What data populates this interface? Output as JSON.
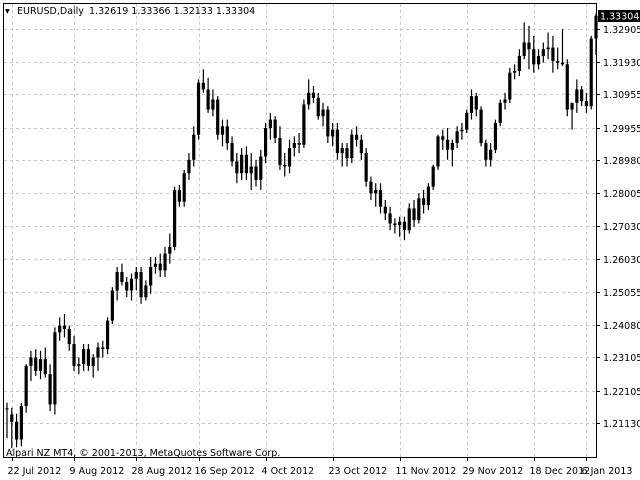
{
  "header": {
    "symbol": "EURUSD,Daily",
    "ohlc": "1.32619 1.33366 1.32133 1.33304"
  },
  "footer": {
    "copyright": "Alpari NZ MT4, © 2001-2013, MetaQuotes Software Corp."
  },
  "colors": {
    "background": "#ffffff",
    "grid": "#c8c8c8",
    "bar": "#000000",
    "frame": "#000000",
    "price_box": "#000000"
  },
  "chart_data": {
    "type": "candlestick",
    "ylim": [
      1.2013,
      1.3365
    ],
    "y_ticks": [
      "1.32905",
      "1.31930",
      "1.30955",
      "1.29955",
      "1.28980",
      "1.28005",
      "1.27030",
      "1.26030",
      "1.25055",
      "1.24080",
      "1.23105",
      "1.22105",
      "1.21130"
    ],
    "x_ticks": [
      "22 Jul 2012",
      "9 Aug 2012",
      "28 Aug 2012",
      "16 Sep 2012",
      "4 Oct 2012",
      "23 Oct 2012",
      "11 Nov 2012",
      "29 Nov 2012",
      "18 Dec 2012",
      "6 Jan 2013"
    ],
    "current_price": "1.33304",
    "series": [
      {
        "x": "2012-07-20",
        "open": 1.2155,
        "high": 1.2175,
        "low": 1.2069,
        "close": 1.2158
      },
      {
        "x": "2012-07-23",
        "open": 1.214,
        "high": 1.216,
        "low": 1.204,
        "close": 1.2118
      },
      {
        "x": "2012-07-24",
        "open": 1.2118,
        "high": 1.2142,
        "low": 1.2042,
        "close": 1.2065
      },
      {
        "x": "2012-07-25",
        "open": 1.2065,
        "high": 1.2175,
        "low": 1.2045,
        "close": 1.2165
      },
      {
        "x": "2012-07-26",
        "open": 1.2165,
        "high": 1.229,
        "low": 1.2145,
        "close": 1.2285
      },
      {
        "x": "2012-07-27",
        "open": 1.2285,
        "high": 1.233,
        "low": 1.224,
        "close": 1.231
      },
      {
        "x": "2012-07-30",
        "open": 1.231,
        "high": 1.2335,
        "low": 1.2255,
        "close": 1.227
      },
      {
        "x": "2012-07-31",
        "open": 1.227,
        "high": 1.233,
        "low": 1.2245,
        "close": 1.2305
      },
      {
        "x": "2012-08-01",
        "open": 1.2305,
        "high": 1.234,
        "low": 1.225,
        "close": 1.226
      },
      {
        "x": "2012-08-02",
        "open": 1.226,
        "high": 1.229,
        "low": 1.215,
        "close": 1.217
      },
      {
        "x": "2012-08-03",
        "open": 1.217,
        "high": 1.24,
        "low": 1.214,
        "close": 1.2385
      },
      {
        "x": "2012-08-06",
        "open": 1.2385,
        "high": 1.243,
        "low": 1.236,
        "close": 1.2405
      },
      {
        "x": "2012-08-07",
        "open": 1.2405,
        "high": 1.244,
        "low": 1.237,
        "close": 1.2395
      },
      {
        "x": "2012-08-08",
        "open": 1.2395,
        "high": 1.2405,
        "low": 1.233,
        "close": 1.235
      },
      {
        "x": "2012-08-09",
        "open": 1.235,
        "high": 1.2375,
        "low": 1.227,
        "close": 1.2285
      },
      {
        "x": "2012-08-10",
        "open": 1.2285,
        "high": 1.231,
        "low": 1.226,
        "close": 1.229
      },
      {
        "x": "2012-08-13",
        "open": 1.229,
        "high": 1.235,
        "low": 1.227,
        "close": 1.2335
      },
      {
        "x": "2012-08-14",
        "open": 1.2335,
        "high": 1.235,
        "low": 1.227,
        "close": 1.2285
      },
      {
        "x": "2012-08-15",
        "open": 1.2285,
        "high": 1.232,
        "low": 1.225,
        "close": 1.231
      },
      {
        "x": "2012-08-16",
        "open": 1.231,
        "high": 1.2355,
        "low": 1.227,
        "close": 1.234
      },
      {
        "x": "2012-08-17",
        "open": 1.234,
        "high": 1.236,
        "low": 1.231,
        "close": 1.2335
      },
      {
        "x": "2012-08-20",
        "open": 1.2335,
        "high": 1.243,
        "low": 1.232,
        "close": 1.242
      },
      {
        "x": "2012-08-21",
        "open": 1.242,
        "high": 1.252,
        "low": 1.241,
        "close": 1.251
      },
      {
        "x": "2012-08-22",
        "open": 1.251,
        "high": 1.258,
        "low": 1.248,
        "close": 1.2565
      },
      {
        "x": "2012-08-23",
        "open": 1.2565,
        "high": 1.259,
        "low": 1.2525,
        "close": 1.2535
      },
      {
        "x": "2012-08-24",
        "open": 1.2535,
        "high": 1.255,
        "low": 1.249,
        "close": 1.251
      },
      {
        "x": "2012-08-27",
        "open": 1.251,
        "high": 1.256,
        "low": 1.248,
        "close": 1.2545
      },
      {
        "x": "2012-08-28",
        "open": 1.2545,
        "high": 1.258,
        "low": 1.251,
        "close": 1.2565
      },
      {
        "x": "2012-08-29",
        "open": 1.2565,
        "high": 1.258,
        "low": 1.247,
        "close": 1.249
      },
      {
        "x": "2012-08-30",
        "open": 1.249,
        "high": 1.254,
        "low": 1.248,
        "close": 1.2525
      },
      {
        "x": "2012-08-31",
        "open": 1.2525,
        "high": 1.261,
        "low": 1.25,
        "close": 1.258
      },
      {
        "x": "2012-09-03",
        "open": 1.258,
        "high": 1.261,
        "low": 1.256,
        "close": 1.259
      },
      {
        "x": "2012-09-04",
        "open": 1.259,
        "high": 1.262,
        "low": 1.255,
        "close": 1.257
      },
      {
        "x": "2012-09-05",
        "open": 1.257,
        "high": 1.264,
        "low": 1.255,
        "close": 1.262
      },
      {
        "x": "2012-09-06",
        "open": 1.262,
        "high": 1.268,
        "low": 1.259,
        "close": 1.264
      },
      {
        "x": "2012-09-07",
        "open": 1.264,
        "high": 1.282,
        "low": 1.263,
        "close": 1.281
      },
      {
        "x": "2012-09-10",
        "open": 1.281,
        "high": 1.2825,
        "low": 1.276,
        "close": 1.2775
      },
      {
        "x": "2012-09-11",
        "open": 1.2775,
        "high": 1.287,
        "low": 1.276,
        "close": 1.286
      },
      {
        "x": "2012-09-12",
        "open": 1.286,
        "high": 1.292,
        "low": 1.284,
        "close": 1.29
      },
      {
        "x": "2012-09-13",
        "open": 1.29,
        "high": 1.3,
        "low": 1.288,
        "close": 1.2975
      },
      {
        "x": "2012-09-14",
        "open": 1.2975,
        "high": 1.314,
        "low": 1.296,
        "close": 1.313
      },
      {
        "x": "2012-09-17",
        "open": 1.313,
        "high": 1.317,
        "low": 1.31,
        "close": 1.311
      },
      {
        "x": "2012-09-18",
        "open": 1.311,
        "high": 1.3145,
        "low": 1.304,
        "close": 1.305
      },
      {
        "x": "2012-09-19",
        "open": 1.305,
        "high": 1.311,
        "low": 1.303,
        "close": 1.308
      },
      {
        "x": "2012-09-20",
        "open": 1.308,
        "high": 1.309,
        "low": 1.296,
        "close": 1.2975
      },
      {
        "x": "2012-09-21",
        "open": 1.2975,
        "high": 1.302,
        "low": 1.294,
        "close": 1.3
      },
      {
        "x": "2012-09-24",
        "open": 1.3,
        "high": 1.302,
        "low": 1.293,
        "close": 1.295
      },
      {
        "x": "2012-09-25",
        "open": 1.295,
        "high": 1.297,
        "low": 1.288,
        "close": 1.2895
      },
      {
        "x": "2012-09-26",
        "open": 1.2895,
        "high": 1.292,
        "low": 1.283,
        "close": 1.286
      },
      {
        "x": "2012-09-27",
        "open": 1.286,
        "high": 1.2935,
        "low": 1.284,
        "close": 1.2915
      },
      {
        "x": "2012-09-28",
        "open": 1.2915,
        "high": 1.294,
        "low": 1.284,
        "close": 1.286
      },
      {
        "x": "2012-10-01",
        "open": 1.286,
        "high": 1.292,
        "low": 1.281,
        "close": 1.288
      },
      {
        "x": "2012-10-02",
        "open": 1.288,
        "high": 1.29,
        "low": 1.282,
        "close": 1.284
      },
      {
        "x": "2012-10-03",
        "open": 1.284,
        "high": 1.293,
        "low": 1.281,
        "close": 1.291
      },
      {
        "x": "2012-10-04",
        "open": 1.291,
        "high": 1.301,
        "low": 1.289,
        "close": 1.2995
      },
      {
        "x": "2012-10-05",
        "open": 1.2995,
        "high": 1.304,
        "low": 1.296,
        "close": 1.302
      },
      {
        "x": "2012-10-08",
        "open": 1.302,
        "high": 1.303,
        "low": 1.295,
        "close": 1.2965
      },
      {
        "x": "2012-10-09",
        "open": 1.2965,
        "high": 1.3,
        "low": 1.287,
        "close": 1.2885
      },
      {
        "x": "2012-10-10",
        "open": 1.2885,
        "high": 1.292,
        "low": 1.285,
        "close": 1.288
      },
      {
        "x": "2012-10-11",
        "open": 1.288,
        "high": 1.296,
        "low": 1.286,
        "close": 1.2935
      },
      {
        "x": "2012-10-12",
        "open": 1.2935,
        "high": 1.297,
        "low": 1.291,
        "close": 1.295
      },
      {
        "x": "2012-10-15",
        "open": 1.295,
        "high": 1.298,
        "low": 1.292,
        "close": 1.2945
      },
      {
        "x": "2012-10-16",
        "open": 1.2945,
        "high": 1.308,
        "low": 1.2935,
        "close": 1.3065
      },
      {
        "x": "2012-10-17",
        "open": 1.3065,
        "high": 1.314,
        "low": 1.305,
        "close": 1.31
      },
      {
        "x": "2012-10-18",
        "open": 1.31,
        "high": 1.312,
        "low": 1.307,
        "close": 1.3085
      },
      {
        "x": "2012-10-19",
        "open": 1.3085,
        "high": 1.31,
        "low": 1.302,
        "close": 1.303
      },
      {
        "x": "2012-10-22",
        "open": 1.303,
        "high": 1.307,
        "low": 1.3,
        "close": 1.305
      },
      {
        "x": "2012-10-23",
        "open": 1.305,
        "high": 1.306,
        "low": 1.295,
        "close": 1.297
      },
      {
        "x": "2012-10-24",
        "open": 1.297,
        "high": 1.301,
        "low": 1.294,
        "close": 1.299
      },
      {
        "x": "2012-10-25",
        "open": 1.299,
        "high": 1.301,
        "low": 1.29,
        "close": 1.292
      },
      {
        "x": "2012-10-26",
        "open": 1.292,
        "high": 1.295,
        "low": 1.288,
        "close": 1.2935
      },
      {
        "x": "2012-10-29",
        "open": 1.2935,
        "high": 1.295,
        "low": 1.288,
        "close": 1.2905
      },
      {
        "x": "2012-10-30",
        "open": 1.2905,
        "high": 1.299,
        "low": 1.289,
        "close": 1.2975
      },
      {
        "x": "2012-10-31",
        "open": 1.2975,
        "high": 1.3,
        "low": 1.294,
        "close": 1.296
      },
      {
        "x": "2012-11-01",
        "open": 1.296,
        "high": 1.2975,
        "low": 1.29,
        "close": 1.292
      },
      {
        "x": "2012-11-02",
        "open": 1.292,
        "high": 1.2935,
        "low": 1.282,
        "close": 1.2835
      },
      {
        "x": "2012-11-05",
        "open": 1.2835,
        "high": 1.285,
        "low": 1.278,
        "close": 1.28
      },
      {
        "x": "2012-11-06",
        "open": 1.28,
        "high": 1.283,
        "low": 1.276,
        "close": 1.281
      },
      {
        "x": "2012-11-07",
        "open": 1.281,
        "high": 1.283,
        "low": 1.274,
        "close": 1.276
      },
      {
        "x": "2012-11-08",
        "open": 1.276,
        "high": 1.278,
        "low": 1.272,
        "close": 1.274
      },
      {
        "x": "2012-11-09",
        "open": 1.274,
        "high": 1.276,
        "low": 1.269,
        "close": 1.271
      },
      {
        "x": "2012-11-12",
        "open": 1.271,
        "high": 1.2725,
        "low": 1.268,
        "close": 1.2705
      },
      {
        "x": "2012-11-13",
        "open": 1.2705,
        "high": 1.273,
        "low": 1.267,
        "close": 1.2715
      },
      {
        "x": "2012-11-14",
        "open": 1.2715,
        "high": 1.273,
        "low": 1.266,
        "close": 1.269
      },
      {
        "x": "2012-11-15",
        "open": 1.269,
        "high": 1.277,
        "low": 1.268,
        "close": 1.2755
      },
      {
        "x": "2012-11-16",
        "open": 1.2755,
        "high": 1.278,
        "low": 1.27,
        "close": 1.272
      },
      {
        "x": "2012-11-19",
        "open": 1.272,
        "high": 1.28,
        "low": 1.271,
        "close": 1.2785
      },
      {
        "x": "2012-11-20",
        "open": 1.2785,
        "high": 1.281,
        "low": 1.274,
        "close": 1.2765
      },
      {
        "x": "2012-11-21",
        "open": 1.2765,
        "high": 1.283,
        "low": 1.275,
        "close": 1.282
      },
      {
        "x": "2012-11-22",
        "open": 1.282,
        "high": 1.2885,
        "low": 1.281,
        "close": 1.288
      },
      {
        "x": "2012-11-23",
        "open": 1.288,
        "high": 1.2975,
        "low": 1.287,
        "close": 1.297
      },
      {
        "x": "2012-11-26",
        "open": 1.297,
        "high": 1.299,
        "low": 1.293,
        "close": 1.296
      },
      {
        "x": "2012-11-27",
        "open": 1.296,
        "high": 1.2995,
        "low": 1.29,
        "close": 1.293
      },
      {
        "x": "2012-11-28",
        "open": 1.293,
        "high": 1.296,
        "low": 1.288,
        "close": 1.295
      },
      {
        "x": "2012-11-29",
        "open": 1.295,
        "high": 1.3,
        "low": 1.2935,
        "close": 1.2985
      },
      {
        "x": "2012-11-30",
        "open": 1.2985,
        "high": 1.301,
        "low": 1.296,
        "close": 1.299
      },
      {
        "x": "2012-12-03",
        "open": 1.299,
        "high": 1.305,
        "low": 1.298,
        "close": 1.304
      },
      {
        "x": "2012-12-04",
        "open": 1.304,
        "high": 1.311,
        "low": 1.302,
        "close": 1.309
      },
      {
        "x": "2012-12-05",
        "open": 1.309,
        "high": 1.31,
        "low": 1.303,
        "close": 1.305
      },
      {
        "x": "2012-12-06",
        "open": 1.305,
        "high": 1.306,
        "low": 1.294,
        "close": 1.295
      },
      {
        "x": "2012-12-07",
        "open": 1.295,
        "high": 1.296,
        "low": 1.288,
        "close": 1.29
      },
      {
        "x": "2012-12-10",
        "open": 1.29,
        "high": 1.295,
        "low": 1.288,
        "close": 1.293
      },
      {
        "x": "2012-12-11",
        "open": 1.293,
        "high": 1.302,
        "low": 1.292,
        "close": 1.301
      },
      {
        "x": "2012-12-12",
        "open": 1.301,
        "high": 1.308,
        "low": 1.3,
        "close": 1.307
      },
      {
        "x": "2012-12-13",
        "open": 1.307,
        "high": 1.31,
        "low": 1.305,
        "close": 1.308
      },
      {
        "x": "2012-12-14",
        "open": 1.308,
        "high": 1.3175,
        "low": 1.307,
        "close": 1.316
      },
      {
        "x": "2012-12-17",
        "open": 1.316,
        "high": 1.3185,
        "low": 1.314,
        "close": 1.3165
      },
      {
        "x": "2012-12-18",
        "open": 1.3165,
        "high": 1.323,
        "low": 1.315,
        "close": 1.321
      },
      {
        "x": "2012-12-19",
        "open": 1.321,
        "high": 1.331,
        "low": 1.32,
        "close": 1.325
      },
      {
        "x": "2012-12-20",
        "open": 1.325,
        "high": 1.33,
        "low": 1.317,
        "close": 1.323
      },
      {
        "x": "2012-12-21",
        "open": 1.323,
        "high": 1.327,
        "low": 1.316,
        "close": 1.3185
      },
      {
        "x": "2012-12-24",
        "open": 1.3185,
        "high": 1.323,
        "low": 1.317,
        "close": 1.321
      },
      {
        "x": "2012-12-26",
        "open": 1.321,
        "high": 1.325,
        "low": 1.319,
        "close": 1.323
      },
      {
        "x": "2012-12-27",
        "open": 1.323,
        "high": 1.328,
        "low": 1.32,
        "close": 1.3235
      },
      {
        "x": "2012-12-28",
        "open": 1.3235,
        "high": 1.327,
        "low": 1.316,
        "close": 1.3195
      },
      {
        "x": "2012-12-31",
        "open": 1.3195,
        "high": 1.3235,
        "low": 1.317,
        "close": 1.319
      },
      {
        "x": "2013-01-02",
        "open": 1.319,
        "high": 1.329,
        "low": 1.318,
        "close": 1.3185
      },
      {
        "x": "2013-01-03",
        "open": 1.3185,
        "high": 1.32,
        "low": 1.303,
        "close": 1.305
      },
      {
        "x": "2013-01-04",
        "open": 1.305,
        "high": 1.307,
        "low": 1.299,
        "close": 1.307
      },
      {
        "x": "2013-01-07",
        "open": 1.307,
        "high": 1.314,
        "low": 1.304,
        "close": 1.311
      },
      {
        "x": "2013-01-08",
        "open": 1.311,
        "high": 1.312,
        "low": 1.306,
        "close": 1.3075
      },
      {
        "x": "2013-01-09",
        "open": 1.3075,
        "high": 1.31,
        "low": 1.304,
        "close": 1.306
      },
      {
        "x": "2013-01-10",
        "open": 1.306,
        "high": 1.327,
        "low": 1.305,
        "close": 1.3262
      },
      {
        "x": "2013-01-11",
        "open": 1.3262,
        "high": 1.3337,
        "low": 1.3213,
        "close": 1.333
      }
    ]
  }
}
